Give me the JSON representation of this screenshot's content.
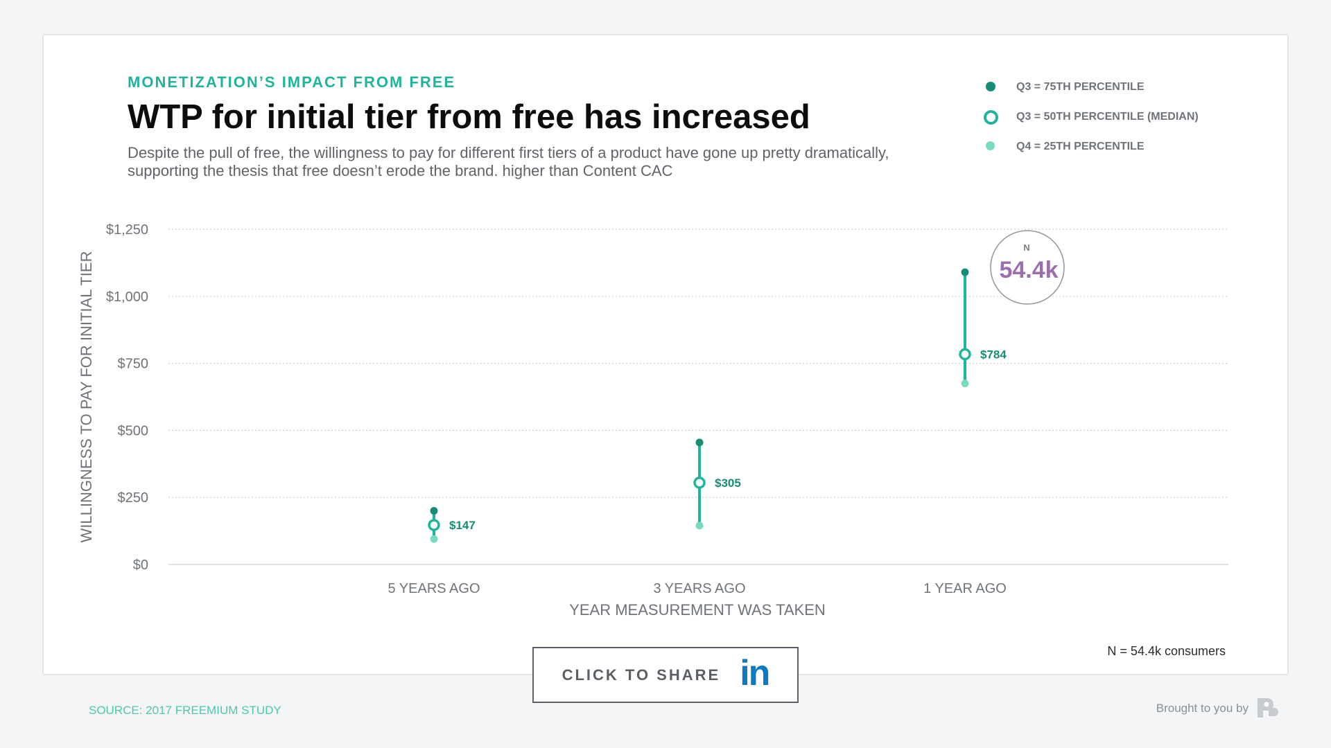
{
  "eyebrow": "MONETIZATION’S IMPACT FROM FREE",
  "title": "WTP for initial tier from free has increased",
  "subtitle": "Despite the pull of free, the willingness to pay for different first tiers of a product have gone up pretty dramatically, supporting the thesis that free doesn’t erode the brand. higher than Content CAC",
  "legend": [
    {
      "label": "Q3 = 75TH PERCENTILE",
      "color": "#168c76"
    },
    {
      "label": "Q3 = 50TH PERCENTILE (MEDIAN)",
      "color": "#1fb59b"
    },
    {
      "label": "Q4 = 25TH PERCENTILE",
      "color": "#76dbbf"
    }
  ],
  "chart_data": {
    "type": "scatter",
    "title": "WTP for initial tier from free has increased",
    "xlabel": "YEAR MEASUREMENT WAS TAKEN",
    "ylabel": "WILLINGNESS TO PAY FOR INITIAL TIER",
    "categories": [
      "5 YEARS AGO",
      "3 YEARS AGO",
      "1 YEAR AGO"
    ],
    "ylim": [
      0,
      1250
    ],
    "yticks": [
      0,
      250,
      500,
      750,
      1000,
      1250
    ],
    "ytick_labels": [
      "$0",
      "$250",
      "$500",
      "$750",
      "$1,000",
      "$1,250"
    ],
    "grid": true,
    "series": [
      {
        "name": "Q3 = 75TH PERCENTILE",
        "values": [
          200,
          455,
          1090
        ]
      },
      {
        "name": "Q3 = 50TH PERCENTILE (MEDIAN)",
        "values": [
          147,
          305,
          784
        ]
      },
      {
        "name": "Q4 = 25TH PERCENTILE",
        "values": [
          95,
          145,
          675
        ]
      }
    ],
    "data_labels": [
      "$147",
      "$305",
      "$784"
    ],
    "annotation": {
      "label": "N",
      "value": "54.4k",
      "category_index": 2
    }
  },
  "colors": {
    "q75": "#168c76",
    "median": "#1fb59b",
    "q25": "#76dbbf",
    "annotation": "#9b6fad",
    "axis_text": "#6d7378"
  },
  "n_note": "N = 54.4k consumers",
  "share": {
    "label": "CLICK TO SHARE",
    "icon_text": "in"
  },
  "source": "SOURCE: 2017 FREEMIUM STUDY",
  "brought": "Brought to you by"
}
